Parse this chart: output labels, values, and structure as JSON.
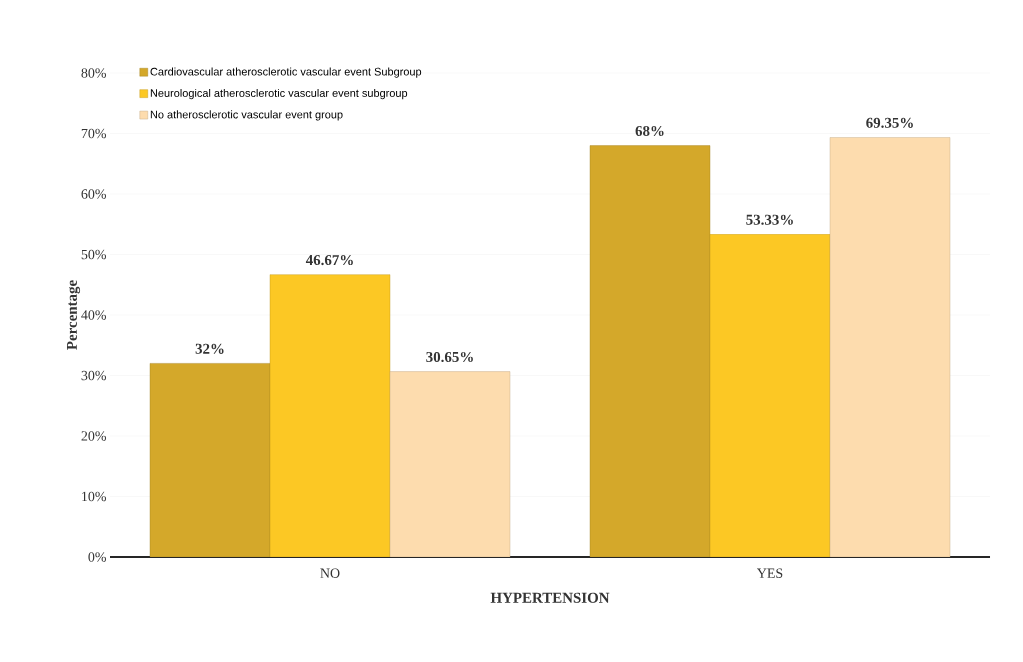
{
  "chart_data": {
    "type": "bar",
    "xlabel": "HYPERTENSION",
    "ylabel": "Percentage",
    "categories": [
      "NO",
      "YES"
    ],
    "series": [
      {
        "name": "Cardiovascular atherosclerotic vascular event Subgroup",
        "color": "#d4a82a",
        "values": [
          32,
          68
        ],
        "value_labels": [
          "32%",
          "68%"
        ]
      },
      {
        "name": "Neurological  atherosclerotic vascular event subgroup",
        "color": "#fcc824",
        "values": [
          46.67,
          53.33
        ],
        "value_labels": [
          "46.67%",
          "53.33%"
        ]
      },
      {
        "name": "No atherosclerotic vascular event group",
        "color": "#fddcae",
        "values": [
          30.65,
          69.35
        ],
        "value_labels": [
          "30.65%",
          "69.35%"
        ]
      }
    ],
    "ylim": [
      0,
      80
    ],
    "yticks": [
      {
        "value": 0,
        "label": "0%"
      },
      {
        "value": 10,
        "label": "10%"
      },
      {
        "value": 20,
        "label": "20%"
      },
      {
        "value": 30,
        "label": "30%"
      },
      {
        "value": 40,
        "label": "40%"
      },
      {
        "value": 50,
        "label": "50%"
      },
      {
        "value": 60,
        "label": "60%"
      },
      {
        "value": 70,
        "label": "70%"
      },
      {
        "value": 80,
        "label": "80%"
      }
    ],
    "grid": "y",
    "legend": "top left"
  }
}
